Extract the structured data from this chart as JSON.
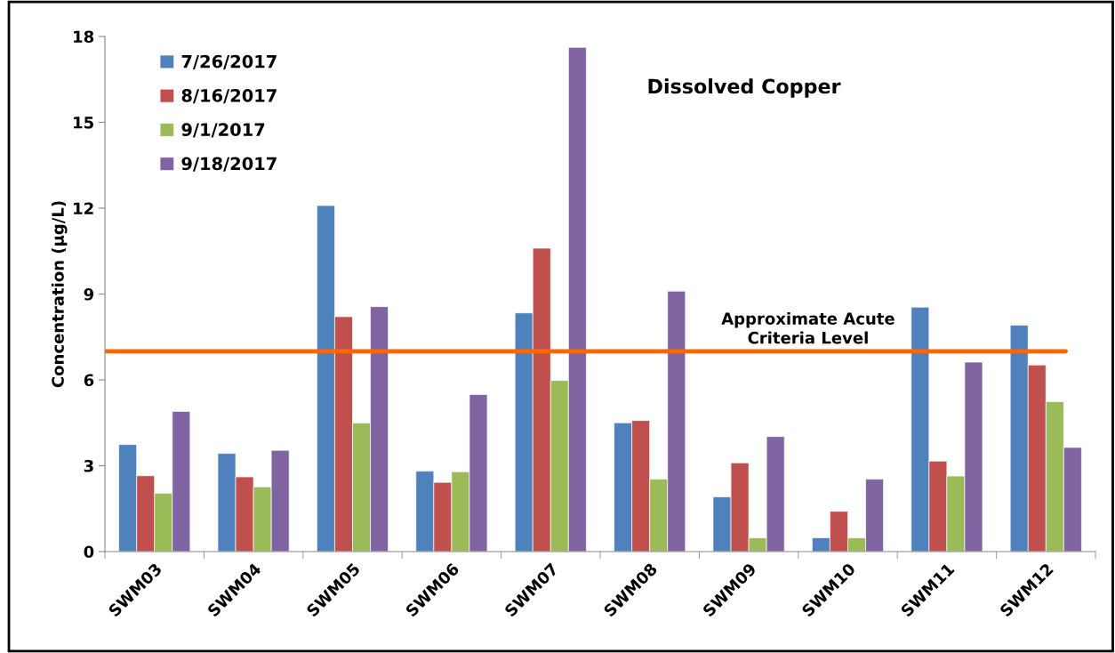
{
  "chart_data": {
    "type": "bar",
    "title": "Dissolved Copper",
    "ylabel": "Concentration (µg/L)",
    "categories": [
      "SWM03",
      "SWM04",
      "SWM05",
      "SWM06",
      "SWM07",
      "SWM08",
      "SWM09",
      "SWM10",
      "SWM11",
      "SWM12"
    ],
    "series": [
      {
        "name": "7/26/2017",
        "color": "#4f81bd",
        "values": [
          3.74,
          3.43,
          12.09,
          2.81,
          8.34,
          4.5,
          1.91,
          0.48,
          8.54,
          7.91
        ]
      },
      {
        "name": "8/16/2017",
        "color": "#c0504d",
        "values": [
          2.65,
          2.61,
          8.21,
          2.42,
          10.6,
          4.58,
          3.1,
          1.41,
          3.16,
          6.52
        ]
      },
      {
        "name": "9/1/2017",
        "color": "#9bbb59",
        "values": [
          2.04,
          2.26,
          4.49,
          2.79,
          5.98,
          2.53,
          0.48,
          0.48,
          2.64,
          5.24
        ]
      },
      {
        "name": "9/18/2017",
        "color": "#8064a2",
        "values": [
          4.9,
          3.54,
          8.56,
          5.49,
          17.62,
          9.1,
          4.02,
          2.53,
          6.62,
          3.64
        ]
      }
    ],
    "ylim": [
      0,
      18
    ],
    "yticks": [
      0,
      3,
      6,
      9,
      12,
      15,
      18
    ],
    "grid": false,
    "legend": "top left",
    "ref_lines": [
      {
        "axis": "y",
        "value": 7,
        "label": "Approximate Acute\nCriteria Level",
        "color": "#ff6600",
        "line_style": "solid"
      }
    ]
  }
}
